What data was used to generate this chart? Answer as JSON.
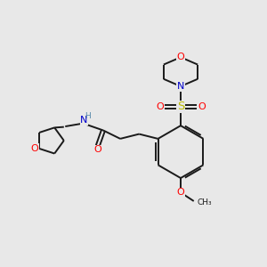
{
  "bg_color": "#e8e8e8",
  "bond_color": "#1a1a1a",
  "atom_colors": {
    "O": "#ff0000",
    "N": "#0000cc",
    "S": "#bbbb00",
    "C": "#1a1a1a",
    "H": "#5588aa"
  },
  "figsize": [
    3.0,
    3.0
  ],
  "dpi": 100,
  "xlim": [
    0,
    10
  ],
  "ylim": [
    0,
    10
  ]
}
